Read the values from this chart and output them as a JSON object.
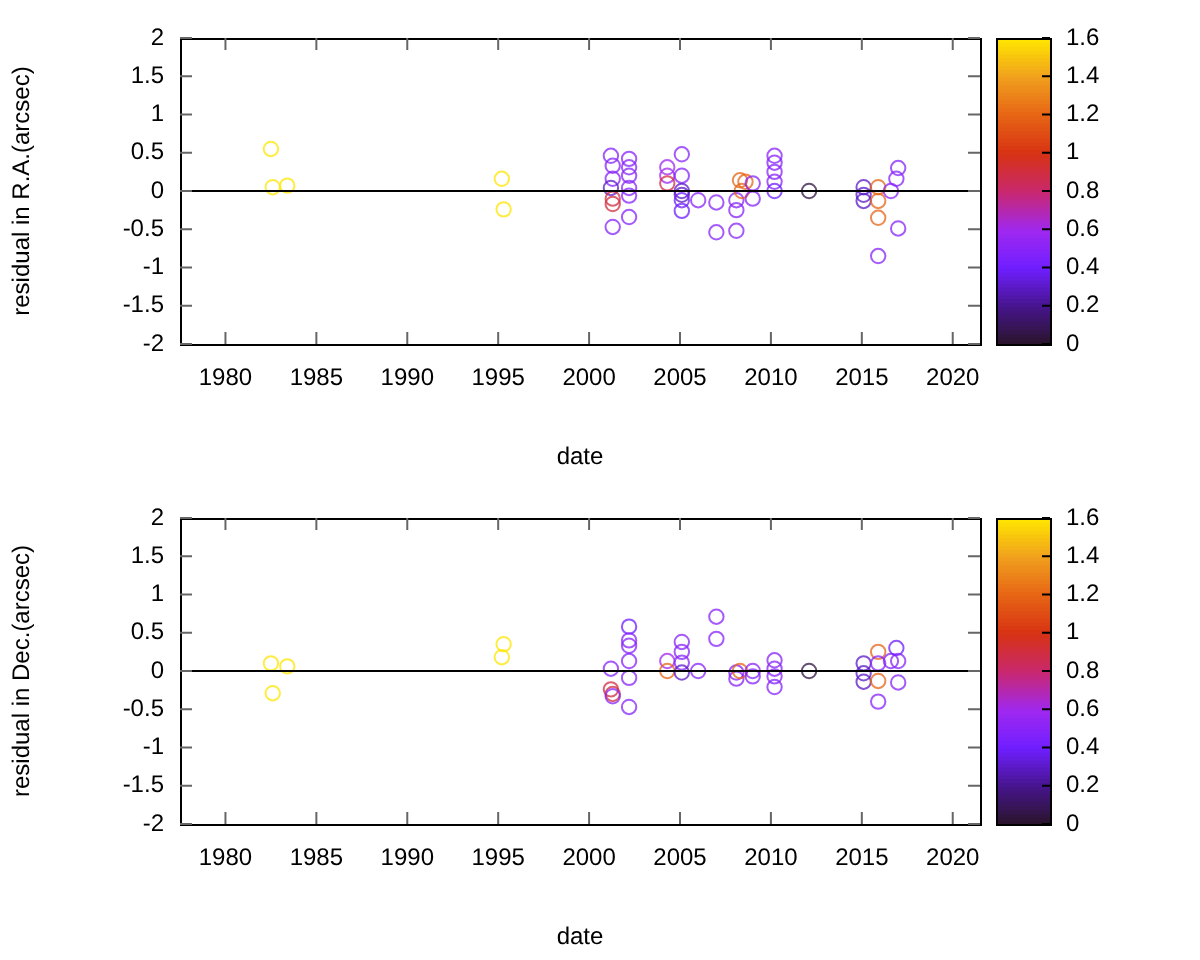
{
  "chart_data": [
    {
      "type": "scatter",
      "xlabel": "date",
      "ylabel": "residual in R.A.(arcsec)",
      "marker": "circle",
      "grid": false,
      "xlim": [
        1977.5,
        2021.5
      ],
      "xticks": [
        1980,
        1985,
        1990,
        1995,
        2000,
        2005,
        2010,
        2015,
        2020
      ],
      "ylim": [
        -2,
        2
      ],
      "yticks": [
        -2,
        -1.5,
        -1,
        -0.5,
        0,
        0.5,
        1,
        1.5,
        2
      ],
      "clim": [
        0,
        1.6
      ],
      "cticks": [
        0,
        0.2,
        0.4,
        0.6,
        0.8,
        1,
        1.2,
        1.4,
        1.6
      ],
      "ref_lines": [
        {
          "axis": "y",
          "value": 0
        }
      ],
      "x": [
        1982.5,
        1982.6,
        1983.4,
        1995.2,
        1995.3,
        2001.2,
        2001.3,
        2001.3,
        2001.2,
        2001.3,
        2001.3,
        2001.3,
        2002.2,
        2002.2,
        2002.2,
        2002.2,
        2002.2,
        2002.2,
        2004.3,
        2004.3,
        2004.3,
        2005.1,
        2005.1,
        2005.1,
        2005.1,
        2005.1,
        2005.1,
        2006.0,
        2007.0,
        2007.0,
        2008.1,
        2008.1,
        2008.1,
        2008.3,
        2008.6,
        2008.4,
        2009.0,
        2009.0,
        2010.2,
        2010.2,
        2010.2,
        2010.2,
        2010.2,
        2012.1,
        2015.1,
        2015.1,
        2015.1,
        2015.9,
        2015.9,
        2015.9,
        2015.9,
        2016.6,
        2016.9,
        2017.0,
        2017.0
      ],
      "values": [
        0.55,
        0.05,
        0.07,
        0.16,
        -0.24,
        0.46,
        0.33,
        0.16,
        0.04,
        -0.1,
        -0.17,
        -0.47,
        0.42,
        0.31,
        0.2,
        0.04,
        -0.06,
        -0.34,
        0.31,
        0.2,
        0.1,
        0.48,
        0.2,
        0.0,
        -0.05,
        -0.12,
        -0.26,
        -0.12,
        -0.15,
        -0.54,
        -0.12,
        -0.25,
        -0.52,
        0.14,
        0.12,
        0.0,
        0.1,
        -0.1,
        0.46,
        0.37,
        0.25,
        0.12,
        0.0,
        0.0,
        0.05,
        -0.05,
        -0.13,
        0.05,
        -0.13,
        -0.35,
        -0.85,
        0.0,
        0.16,
        0.3,
        -0.49
      ],
      "cvalues": [
        1.6,
        1.6,
        1.6,
        1.6,
        1.6,
        0.5,
        0.5,
        0.5,
        0.3,
        0.9,
        0.9,
        0.5,
        0.5,
        0.5,
        0.5,
        0.5,
        0.5,
        0.5,
        0.6,
        0.6,
        0.9,
        0.5,
        0.5,
        0.3,
        0.3,
        0.4,
        0.4,
        0.5,
        0.5,
        0.5,
        0.5,
        0.5,
        0.5,
        1.2,
        1.2,
        1.2,
        0.5,
        0.5,
        0.5,
        0.5,
        0.5,
        0.5,
        0.4,
        0.05,
        0.3,
        0.3,
        0.3,
        1.2,
        1.2,
        1.2,
        0.5,
        0.5,
        0.5,
        0.5,
        0.5
      ]
    },
    {
      "type": "scatter",
      "xlabel": "date",
      "ylabel": "residual in Dec.(arcsec)",
      "marker": "circle",
      "grid": false,
      "xlim": [
        1977.5,
        2021.5
      ],
      "xticks": [
        1980,
        1985,
        1990,
        1995,
        2000,
        2005,
        2010,
        2015,
        2020
      ],
      "ylim": [
        -2,
        2
      ],
      "yticks": [
        -2,
        -1.5,
        -1,
        -0.5,
        0,
        0.5,
        1,
        1.5,
        2
      ],
      "clim": [
        0,
        1.6
      ],
      "cticks": [
        0,
        0.2,
        0.4,
        0.6,
        0.8,
        1,
        1.2,
        1.4,
        1.6
      ],
      "ref_lines": [
        {
          "axis": "y",
          "value": 0
        }
      ],
      "x": [
        1982.5,
        1983.4,
        1982.6,
        1995.3,
        1995.2,
        2001.2,
        2001.2,
        2001.3,
        2001.3,
        2002.2,
        2002.2,
        2002.2,
        2002.2,
        2002.2,
        2002.2,
        2004.3,
        2004.3,
        2005.1,
        2005.1,
        2005.1,
        2005.1,
        2006.0,
        2007.0,
        2007.0,
        2008.1,
        2008.1,
        2008.3,
        2009.0,
        2009.0,
        2010.2,
        2010.2,
        2010.2,
        2010.2,
        2012.1,
        2015.1,
        2015.1,
        2015.1,
        2015.9,
        2015.9,
        2015.9,
        2015.9,
        2016.6,
        2016.9,
        2017.0,
        2017.0
      ],
      "values": [
        0.1,
        0.06,
        -0.29,
        0.35,
        0.18,
        0.03,
        -0.24,
        -0.3,
        -0.33,
        0.58,
        0.4,
        0.33,
        0.13,
        -0.09,
        -0.47,
        0.13,
        0.0,
        0.38,
        0.25,
        0.11,
        -0.02,
        0.0,
        0.71,
        0.42,
        -0.02,
        -0.1,
        0.0,
        0.0,
        -0.07,
        0.14,
        0.03,
        -0.07,
        -0.21,
        0.0,
        0.1,
        -0.03,
        -0.14,
        0.25,
        0.1,
        -0.13,
        -0.4,
        0.13,
        0.3,
        0.13,
        -0.15
      ],
      "cvalues": [
        1.6,
        1.6,
        1.6,
        1.6,
        1.6,
        0.5,
        0.9,
        0.9,
        0.5,
        0.4,
        0.5,
        0.5,
        0.5,
        0.5,
        0.5,
        0.6,
        1.2,
        0.5,
        0.5,
        0.5,
        0.3,
        0.5,
        0.5,
        0.5,
        0.5,
        0.5,
        1.2,
        0.5,
        0.5,
        0.5,
        0.5,
        0.5,
        0.5,
        0.05,
        0.3,
        0.3,
        0.3,
        1.2,
        0.5,
        1.2,
        0.5,
        0.5,
        0.4,
        0.5,
        0.5
      ]
    }
  ]
}
